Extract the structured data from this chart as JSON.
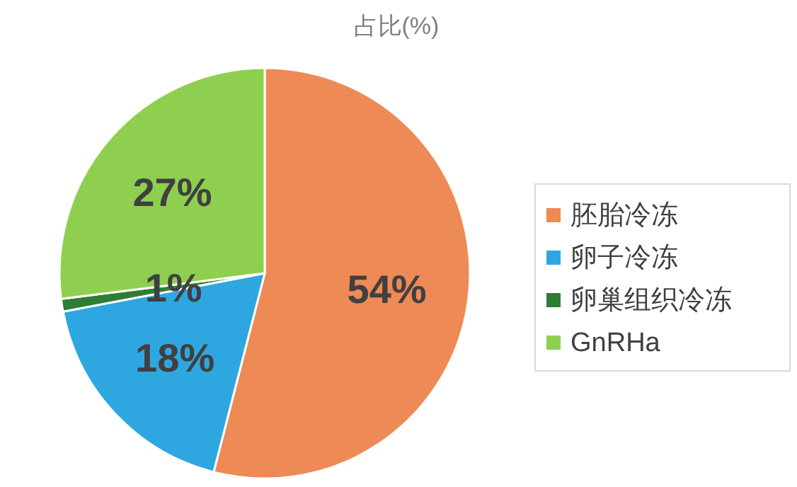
{
  "chart_data": {
    "type": "pie",
    "title": "占比(%)",
    "categories": [
      "胚胎冷冻",
      "卵子冷冻",
      "卵巢组织冷冻",
      "GnRHa"
    ],
    "values": [
      54,
      18,
      1,
      27
    ],
    "colors": [
      "#ee8a55",
      "#2ea7e0",
      "#2e7d32",
      "#8fcf4f"
    ],
    "value_labels": [
      "54%",
      "18%",
      "1%",
      "27%"
    ],
    "legend": "right"
  }
}
